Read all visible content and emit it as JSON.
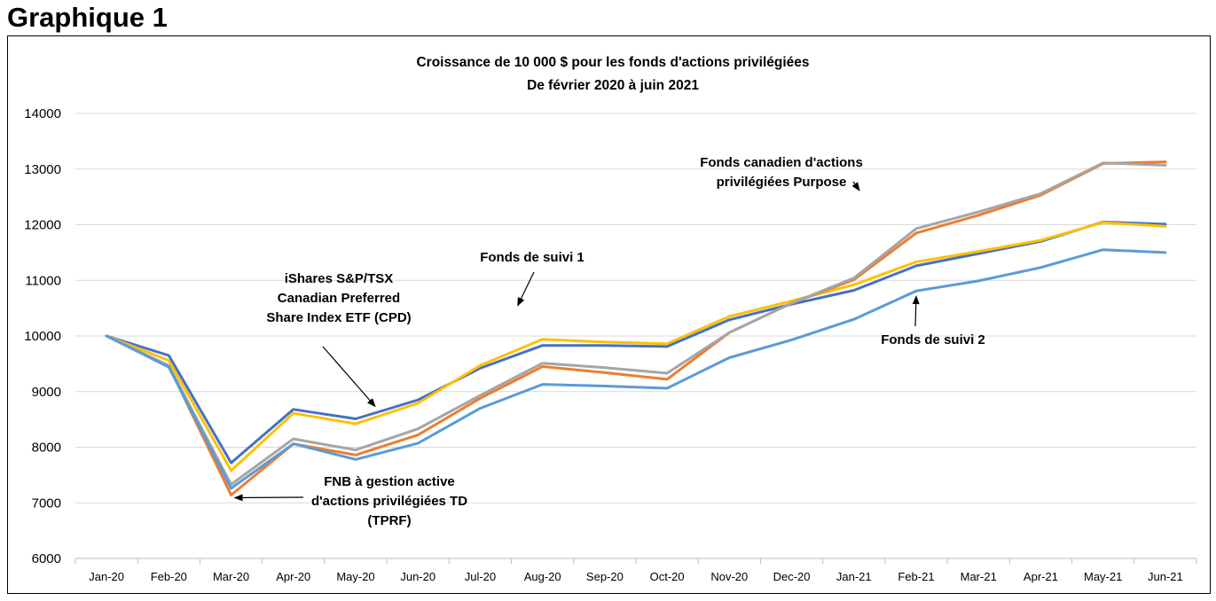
{
  "heading": "Graphique 1",
  "chart_data": {
    "type": "line",
    "title": "Croissance de 10 000 $ pour les fonds d'actions privilégiées",
    "subtitle": "De février 2020 à juin 2021",
    "xlabel": "",
    "ylabel": "",
    "ylim": [
      6000,
      14000
    ],
    "yticks": [
      6000,
      7000,
      8000,
      9000,
      10000,
      11000,
      12000,
      13000,
      14000
    ],
    "grid": true,
    "categories": [
      "Jan-20",
      "Feb-20",
      "Mar-20",
      "Apr-20",
      "May-20",
      "Jun-20",
      "Jul-20",
      "Aug-20",
      "Sep-20",
      "Oct-20",
      "Nov-20",
      "Dec-20",
      "Jan-21",
      "Feb-21",
      "Mar-21",
      "Apr-21",
      "May-21",
      "Jun-21"
    ],
    "series": [
      {
        "name": "iShares S&P/TSX Canadian Preferred Share Index ETF (CPD)",
        "color": "#4472c4",
        "values": [
          10000,
          9650,
          7720,
          8680,
          8510,
          8850,
          9420,
          9830,
          9830,
          9810,
          10290,
          10570,
          10820,
          11260,
          11480,
          11700,
          12050,
          12010
        ]
      },
      {
        "name": "Fonds de suivi 1",
        "color": "#ffc000",
        "values": [
          10000,
          9560,
          7580,
          8610,
          8420,
          8790,
          9470,
          9940,
          9890,
          9860,
          10350,
          10630,
          10920,
          11330,
          11520,
          11720,
          12040,
          11970
        ]
      },
      {
        "name": "FNB à gestion active d'actions privilégiées TD (TPRF)",
        "color": "#ed7d31",
        "values": [
          10000,
          9460,
          7140,
          8060,
          7860,
          8220,
          8880,
          9450,
          9340,
          9220,
          10060,
          10590,
          11010,
          11850,
          12170,
          12530,
          13100,
          13130
        ]
      },
      {
        "name": "Fonds canadien d'actions privilégiées Purpose",
        "color": "#a5a5a5",
        "values": [
          10000,
          9470,
          7330,
          8150,
          7950,
          8330,
          8930,
          9510,
          9430,
          9330,
          10060,
          10590,
          11040,
          11930,
          12230,
          12560,
          13110,
          13070
        ]
      },
      {
        "name": "Fonds de suivi 2",
        "color": "#5b9bd5",
        "values": [
          10000,
          9440,
          7260,
          8060,
          7780,
          8070,
          8700,
          9130,
          9100,
          9060,
          9610,
          9930,
          10300,
          10810,
          10990,
          11230,
          11550,
          11500
        ]
      }
    ],
    "annotations": [
      {
        "lines": [
          "iShares S&P/TSX",
          "Canadian Preferred",
          "Share Index ETF (CPD)"
        ],
        "series": 0
      },
      {
        "lines": [
          "Fonds de suivi 1"
        ],
        "series": 1
      },
      {
        "lines": [
          "FNB à gestion active",
          "d'actions privilégiées TD",
          "(TPRF)"
        ],
        "series": 2
      },
      {
        "lines": [
          "Fonds canadien d'actions",
          "privilégiées Purpose"
        ],
        "series": 3
      },
      {
        "lines": [
          "Fonds de suivi 2"
        ],
        "series": 4
      }
    ]
  }
}
